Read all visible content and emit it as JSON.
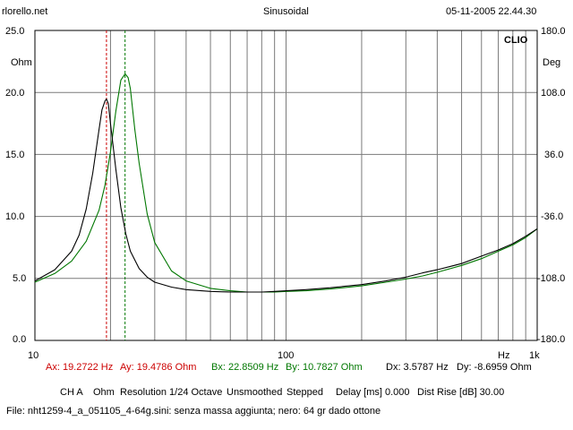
{
  "header": {
    "left": "rlorello.net",
    "center": "Sinusoidal",
    "right": "05-11-2005 22.44.30"
  },
  "brand": "CLIO",
  "axis": {
    "left_unit": "Ohm",
    "right_unit": "Deg",
    "x_unit": "Hz",
    "left_ticks": [
      "25.0",
      "20.0",
      "15.0",
      "10.0",
      "5.0",
      "0.0"
    ],
    "right_ticks": [
      "180.0",
      "108.0",
      "36.0",
      "-36.0",
      "-108.0",
      "-180.0"
    ],
    "x_ticks": [
      "10",
      "100",
      "1k"
    ]
  },
  "cursors": {
    "a": {
      "x_text": "Ax: 19.2722 Hz",
      "y_text": "Ay: 19.4786 Ohm",
      "color": "#cc0000"
    },
    "b": {
      "x_text": "Bx: 22.8509 Hz",
      "y_text": "By: 10.7827 Ohm",
      "color": "#007700"
    },
    "dx_text": "Dx: 3.5787 Hz",
    "dy_text": "Dy: -8.6959 Ohm"
  },
  "status": {
    "channel": "CH A",
    "unit": "Ohm",
    "resolution": "Resolution 1/24 Octave",
    "smoothing": "Unsmoothed",
    "mode": "Stepped",
    "delay": "Delay [ms] 0.000",
    "dist_rise": "Dist Rise [dB] 30.00"
  },
  "file_line": "File: nht1259-4_a_051105_4-64g.sini: senza massa aggiunta; nero: 64 gr dado ottone",
  "chart_data": {
    "type": "line",
    "title": "Sinusoidal",
    "xlabel": "Hz",
    "ylabel": "Ohm",
    "y2label": "Deg",
    "x_scale": "log",
    "xlim": [
      10,
      1000
    ],
    "ylim": [
      0,
      25
    ],
    "y2lim": [
      -180,
      180
    ],
    "grid": true,
    "series": [
      {
        "color": "#000000",
        "x": [
          10,
          12,
          14,
          15,
          16,
          17,
          18,
          18.5,
          19,
          19.27,
          19.6,
          20,
          21,
          22,
          23,
          24,
          26,
          28,
          30,
          35,
          40,
          50,
          60,
          70,
          80,
          90,
          100,
          120,
          150,
          200,
          250,
          300,
          350,
          400,
          500,
          600,
          700,
          800,
          900,
          1000
        ],
        "y": [
          4.8,
          5.7,
          7.2,
          8.5,
          10.6,
          13.5,
          17.0,
          18.6,
          19.3,
          19.48,
          19.1,
          17.5,
          13.8,
          10.7,
          8.6,
          7.2,
          5.8,
          5.1,
          4.7,
          4.3,
          4.1,
          3.95,
          3.9,
          3.9,
          3.9,
          3.95,
          4.0,
          4.1,
          4.25,
          4.5,
          4.8,
          5.1,
          5.45,
          5.7,
          6.2,
          6.8,
          7.3,
          7.8,
          8.4,
          9.0
        ]
      },
      {
        "color": "#007700",
        "x": [
          10,
          12,
          14,
          16,
          18,
          19,
          20,
          21,
          22,
          22.85,
          23.5,
          24,
          25,
          26,
          28,
          30,
          35,
          40,
          50,
          60,
          70,
          80,
          90,
          100,
          120,
          150,
          200,
          250,
          300,
          350,
          400,
          500,
          600,
          700,
          800,
          900,
          1000
        ],
        "y": [
          4.7,
          5.4,
          6.4,
          8.0,
          10.5,
          12.5,
          15.2,
          18.5,
          21.0,
          21.5,
          21.2,
          20.3,
          17.0,
          14.3,
          10.2,
          7.9,
          5.6,
          4.8,
          4.2,
          4.0,
          3.9,
          3.9,
          3.9,
          3.95,
          4.0,
          4.15,
          4.4,
          4.7,
          4.95,
          5.2,
          5.5,
          6.05,
          6.6,
          7.2,
          7.7,
          8.3,
          9.0
        ]
      }
    ],
    "cursor_x": [
      19.2722,
      22.8509
    ]
  }
}
